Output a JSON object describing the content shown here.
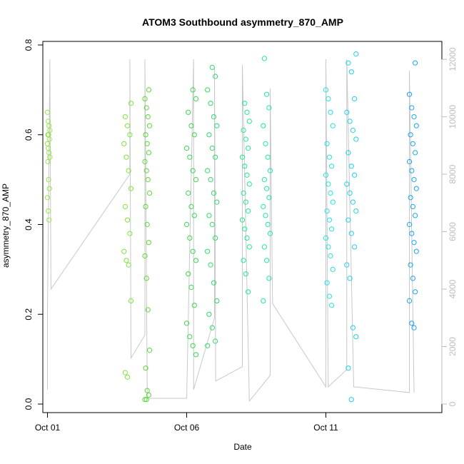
{
  "chart_data": {
    "type": "scatter",
    "title": "ATOM3 Southbound asymmetry_870_AMP",
    "xlabel": "Date",
    "ylabel": "asymmetry_870_AMP",
    "x_unit": "days",
    "xlim": [
      "Sep 30 20:00",
      "Oct 15 04:00"
    ],
    "ylim": [
      0.0,
      0.8
    ],
    "y2lim": [
      0,
      12000
    ],
    "xticks": [
      {
        "label": "Oct 01",
        "value": "Oct 01 00:00"
      },
      {
        "label": "Oct 06",
        "value": "Oct 06 00:00"
      },
      {
        "label": "Oct 11",
        "value": "Oct 11 00:00"
      }
    ],
    "yticks": [
      "0.0",
      "0.2",
      "0.4",
      "0.6",
      "0.8"
    ],
    "y2ticks": [
      "0",
      "2000",
      "4000",
      "6000",
      "8000",
      "10000",
      "12000"
    ],
    "grid": false,
    "legend": "none",
    "marker": "open circle",
    "color_scale": "time-based gradient (yellow-green to blue)",
    "secondary_series_color": "#c8c8c8",
    "clusters": [
      {
        "x_start": "Oct 01 00:00",
        "x_end": "Oct 01 02:00",
        "y_values": [
          0.65,
          0.63,
          0.62,
          0.61,
          0.6,
          0.6,
          0.59,
          0.58,
          0.57,
          0.56,
          0.55,
          0.54,
          0.5,
          0.48,
          0.46,
          0.43,
          0.41
        ],
        "color": "#94e64a"
      },
      {
        "x_start": "Oct 03 18:00",
        "x_end": "Oct 04 00:00",
        "y_values": [
          0.67,
          0.64,
          0.62,
          0.6,
          0.58,
          0.55,
          0.52,
          0.48,
          0.44,
          0.41,
          0.38,
          0.34,
          0.32,
          0.31,
          0.23,
          0.07,
          0.06
        ],
        "color": "#7fe53a"
      },
      {
        "x_start": "Oct 04 12:00",
        "x_end": "Oct 04 16:00",
        "y_values": [
          0.7,
          0.68,
          0.66,
          0.64,
          0.62,
          0.6,
          0.58,
          0.56,
          0.54,
          0.52,
          0.5,
          0.47,
          0.44,
          0.4,
          0.36,
          0.33,
          0.28,
          0.21,
          0.12,
          0.08,
          0.03,
          0.02,
          0.01,
          0.01
        ],
        "color": "#5cd834"
      },
      {
        "x_start": "Oct 06 00:00",
        "x_end": "Oct 06 08:00",
        "y_values": [
          0.7,
          0.68,
          0.65,
          0.62,
          0.6,
          0.57,
          0.55,
          0.52,
          0.5,
          0.47,
          0.44,
          0.42,
          0.4,
          0.37,
          0.34,
          0.32,
          0.29,
          0.26,
          0.22,
          0.18,
          0.15,
          0.13,
          0.11
        ],
        "color": "#3bd650"
      },
      {
        "x_start": "Oct 06 18:00",
        "x_end": "Oct 07 02:00",
        "y_values": [
          0.75,
          0.73,
          0.7,
          0.67,
          0.64,
          0.62,
          0.6,
          0.57,
          0.55,
          0.52,
          0.5,
          0.47,
          0.45,
          0.42,
          0.4,
          0.37,
          0.34,
          0.31,
          0.27,
          0.23,
          0.2,
          0.17,
          0.14,
          0.13
        ],
        "color": "#2fdb68"
      },
      {
        "x_start": "Oct 08 00:00",
        "x_end": "Oct 08 06:00",
        "y_values": [
          0.67,
          0.65,
          0.63,
          0.61,
          0.59,
          0.57,
          0.55,
          0.53,
          0.51,
          0.49,
          0.47,
          0.45,
          0.43,
          0.41,
          0.39,
          0.37,
          0.35,
          0.32,
          0.29,
          0.25
        ],
        "color": "#1fe98c"
      },
      {
        "x_start": "Oct 08 18:00",
        "x_end": "Oct 09 00:00",
        "y_values": [
          0.77,
          0.69,
          0.66,
          0.62,
          0.58,
          0.55,
          0.52,
          0.5,
          0.48,
          0.46,
          0.44,
          0.42,
          0.4,
          0.38,
          0.35,
          0.32,
          0.28,
          0.23
        ],
        "color": "#1fe6aa"
      },
      {
        "x_start": "Oct 11 00:00",
        "x_end": "Oct 11 06:00",
        "y_values": [
          0.7,
          0.68,
          0.65,
          0.62,
          0.58,
          0.55,
          0.53,
          0.51,
          0.49,
          0.47,
          0.45,
          0.43,
          0.41,
          0.39,
          0.37,
          0.35,
          0.33,
          0.3,
          0.27,
          0.24,
          0.22
        ],
        "color": "#1fe6e0"
      },
      {
        "x_start": "Oct 11 18:00",
        "x_end": "Oct 12 02:00",
        "y_values": [
          0.78,
          0.76,
          0.74,
          0.68,
          0.65,
          0.63,
          0.61,
          0.59,
          0.56,
          0.53,
          0.51,
          0.49,
          0.47,
          0.45,
          0.43,
          0.41,
          0.38,
          0.35,
          0.31,
          0.28,
          0.17,
          0.15,
          0.08,
          0.01
        ],
        "color": "#1fd0ec"
      },
      {
        "x_start": "Oct 14 00:00",
        "x_end": "Oct 14 06:00",
        "y_values": [
          0.76,
          0.69,
          0.66,
          0.64,
          0.62,
          0.6,
          0.58,
          0.56,
          0.54,
          0.52,
          0.5,
          0.48,
          0.46,
          0.44,
          0.42,
          0.4,
          0.38,
          0.36,
          0.34,
          0.31,
          0.28,
          0.25,
          0.23,
          0.18,
          0.17
        ],
        "color": "#19a6ec"
      }
    ],
    "secondary_series": [
      {
        "x": "Oct 01 00:00",
        "y2": 500
      },
      {
        "x": "Oct 01 00:00",
        "y2": 3200
      },
      {
        "x": "Oct 01 02:00",
        "y2": 11700
      },
      {
        "x": "Oct 01 02:00",
        "y2": 12000
      },
      {
        "x": "Oct 01 03:00",
        "y2": 4000
      },
      {
        "x": "Oct 03 23:00",
        "y2": 8000
      },
      {
        "x": "Oct 03 23:00",
        "y2": 12000
      },
      {
        "x": "Oct 04 00:00",
        "y2": 1600
      },
      {
        "x": "Oct 04 12:00",
        "y2": 2400
      },
      {
        "x": "Oct 04 12:00",
        "y2": 12000
      },
      {
        "x": "Oct 04 14:00",
        "y2": 200
      },
      {
        "x": "Oct 06 00:00",
        "y2": 200
      },
      {
        "x": "Oct 06 06:00",
        "y2": 12000
      },
      {
        "x": "Oct 06 06:00",
        "y2": 500
      },
      {
        "x": "Oct 07 00:00",
        "y2": 3000
      },
      {
        "x": "Oct 07 00:00",
        "y2": 11700
      },
      {
        "x": "Oct 07 01:00",
        "y2": 800
      },
      {
        "x": "Oct 08 00:00",
        "y2": 1300
      },
      {
        "x": "Oct 08 00:00",
        "y2": 11800
      },
      {
        "x": "Oct 08 06:00",
        "y2": 100
      },
      {
        "x": "Oct 09 00:00",
        "y2": 1000
      },
      {
        "x": "Oct 09 00:00",
        "y2": 11000
      },
      {
        "x": "Oct 09 02:00",
        "y2": 3500
      },
      {
        "x": "Oct 11 00:00",
        "y2": 600
      },
      {
        "x": "Oct 11 00:00",
        "y2": 12000
      },
      {
        "x": "Oct 11 02:00",
        "y2": 600
      },
      {
        "x": "Oct 11 18:00",
        "y2": 1200
      },
      {
        "x": "Oct 11 18:00",
        "y2": 12000
      },
      {
        "x": "Oct 12 00:00",
        "y2": 600
      },
      {
        "x": "Oct 14 00:00",
        "y2": 400
      },
      {
        "x": "Oct 14 00:00",
        "y2": 11600
      },
      {
        "x": "Oct 14 04:00",
        "y2": 400
      }
    ]
  }
}
